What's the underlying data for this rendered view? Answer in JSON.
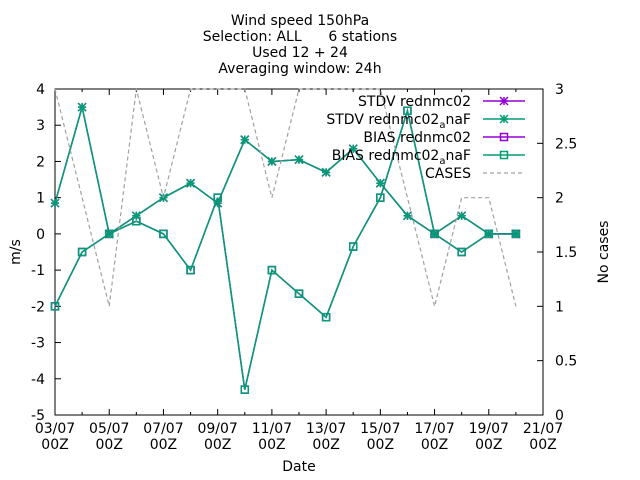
{
  "title_lines": [
    "Wind speed 150hPa",
    "Selection: ALL      6 stations",
    "Used 12 + 24",
    "Averaging window: 24h"
  ],
  "chart_data": {
    "type": "line",
    "xlabel": "Date",
    "ylabel": "m/s",
    "y2label": "No cases",
    "ylim": [
      -5,
      4
    ],
    "y2lim": [
      0,
      3
    ],
    "x_tick_labels": [
      [
        "03/07",
        "00Z"
      ],
      [
        "05/07",
        "00Z"
      ],
      [
        "07/07",
        "00Z"
      ],
      [
        "09/07",
        "00Z"
      ],
      [
        "11/07",
        "00Z"
      ],
      [
        "13/07",
        "00Z"
      ],
      [
        "15/07",
        "00Z"
      ],
      [
        "17/07",
        "00Z"
      ],
      [
        "19/07",
        "00Z"
      ],
      [
        "21/07",
        "00Z"
      ]
    ],
    "y_ticks": [
      "-5",
      "-4",
      "-3",
      "-2",
      "-1",
      "0",
      "1",
      "2",
      "3",
      "4"
    ],
    "y2_ticks": [
      "0",
      "0.5",
      "1",
      "1.5",
      "2",
      "2.5",
      "3"
    ],
    "x": [
      0,
      1,
      2,
      3,
      4,
      5,
      6,
      7,
      8,
      9,
      10,
      11,
      12,
      13,
      14,
      15,
      16,
      17
    ],
    "series": [
      {
        "name": "STDV rednmc02",
        "color": "#9400d3",
        "marker": "star",
        "axis": "y",
        "values": [
          0.85,
          3.5,
          0.0,
          0.5,
          1.0,
          1.4,
          0.85,
          2.6,
          2.0,
          2.05,
          1.7,
          2.35,
          1.4,
          0.5,
          0.0,
          0.5,
          0.0,
          0.0
        ]
      },
      {
        "name": "STDV rednmc02_a naF",
        "color": "#009e73",
        "marker": "star",
        "axis": "y",
        "values": [
          0.85,
          3.5,
          0.0,
          0.5,
          1.0,
          1.4,
          0.85,
          2.6,
          2.0,
          2.05,
          1.7,
          2.35,
          1.4,
          0.5,
          0.0,
          0.5,
          0.0,
          0.0
        ]
      },
      {
        "name": "BIAS rednmc02",
        "color": "#9400d3",
        "marker": "square",
        "axis": "y",
        "values": [
          -2.0,
          -0.5,
          0.0,
          0.35,
          0.0,
          -1.0,
          1.0,
          -4.3,
          -1.0,
          -1.65,
          -2.3,
          -0.35,
          1.0,
          3.4,
          0.0,
          -0.5,
          0.0,
          0.0
        ]
      },
      {
        "name": "BIAS rednmc02_a naF",
        "color": "#009e73",
        "marker": "square",
        "axis": "y",
        "values": [
          -2.0,
          -0.5,
          0.0,
          0.35,
          0.0,
          -1.0,
          1.0,
          -4.3,
          -1.0,
          -1.65,
          -2.3,
          -0.35,
          1.0,
          3.4,
          0.0,
          -0.5,
          0.0,
          0.0
        ]
      },
      {
        "name": "CASES",
        "color": "#a0a0a0",
        "marker": "none",
        "dashed": true,
        "axis": "y2",
        "values": [
          3,
          2,
          1,
          3,
          2,
          3,
          3,
          3,
          2,
          3,
          3,
          3,
          3,
          2,
          1,
          2,
          2,
          1
        ]
      }
    ],
    "legend_position": "top-right",
    "legend": [
      {
        "base": "STDV rednmc02",
        "sub": "",
        "tail": ""
      },
      {
        "base": "STDV rednmc02",
        "sub": "a",
        "tail": "naF"
      },
      {
        "base": "BIAS rednmc02",
        "sub": "",
        "tail": ""
      },
      {
        "base": "BIAS rednmc02",
        "sub": "a",
        "tail": "naF"
      },
      {
        "base": "CASES",
        "sub": "",
        "tail": ""
      }
    ]
  }
}
